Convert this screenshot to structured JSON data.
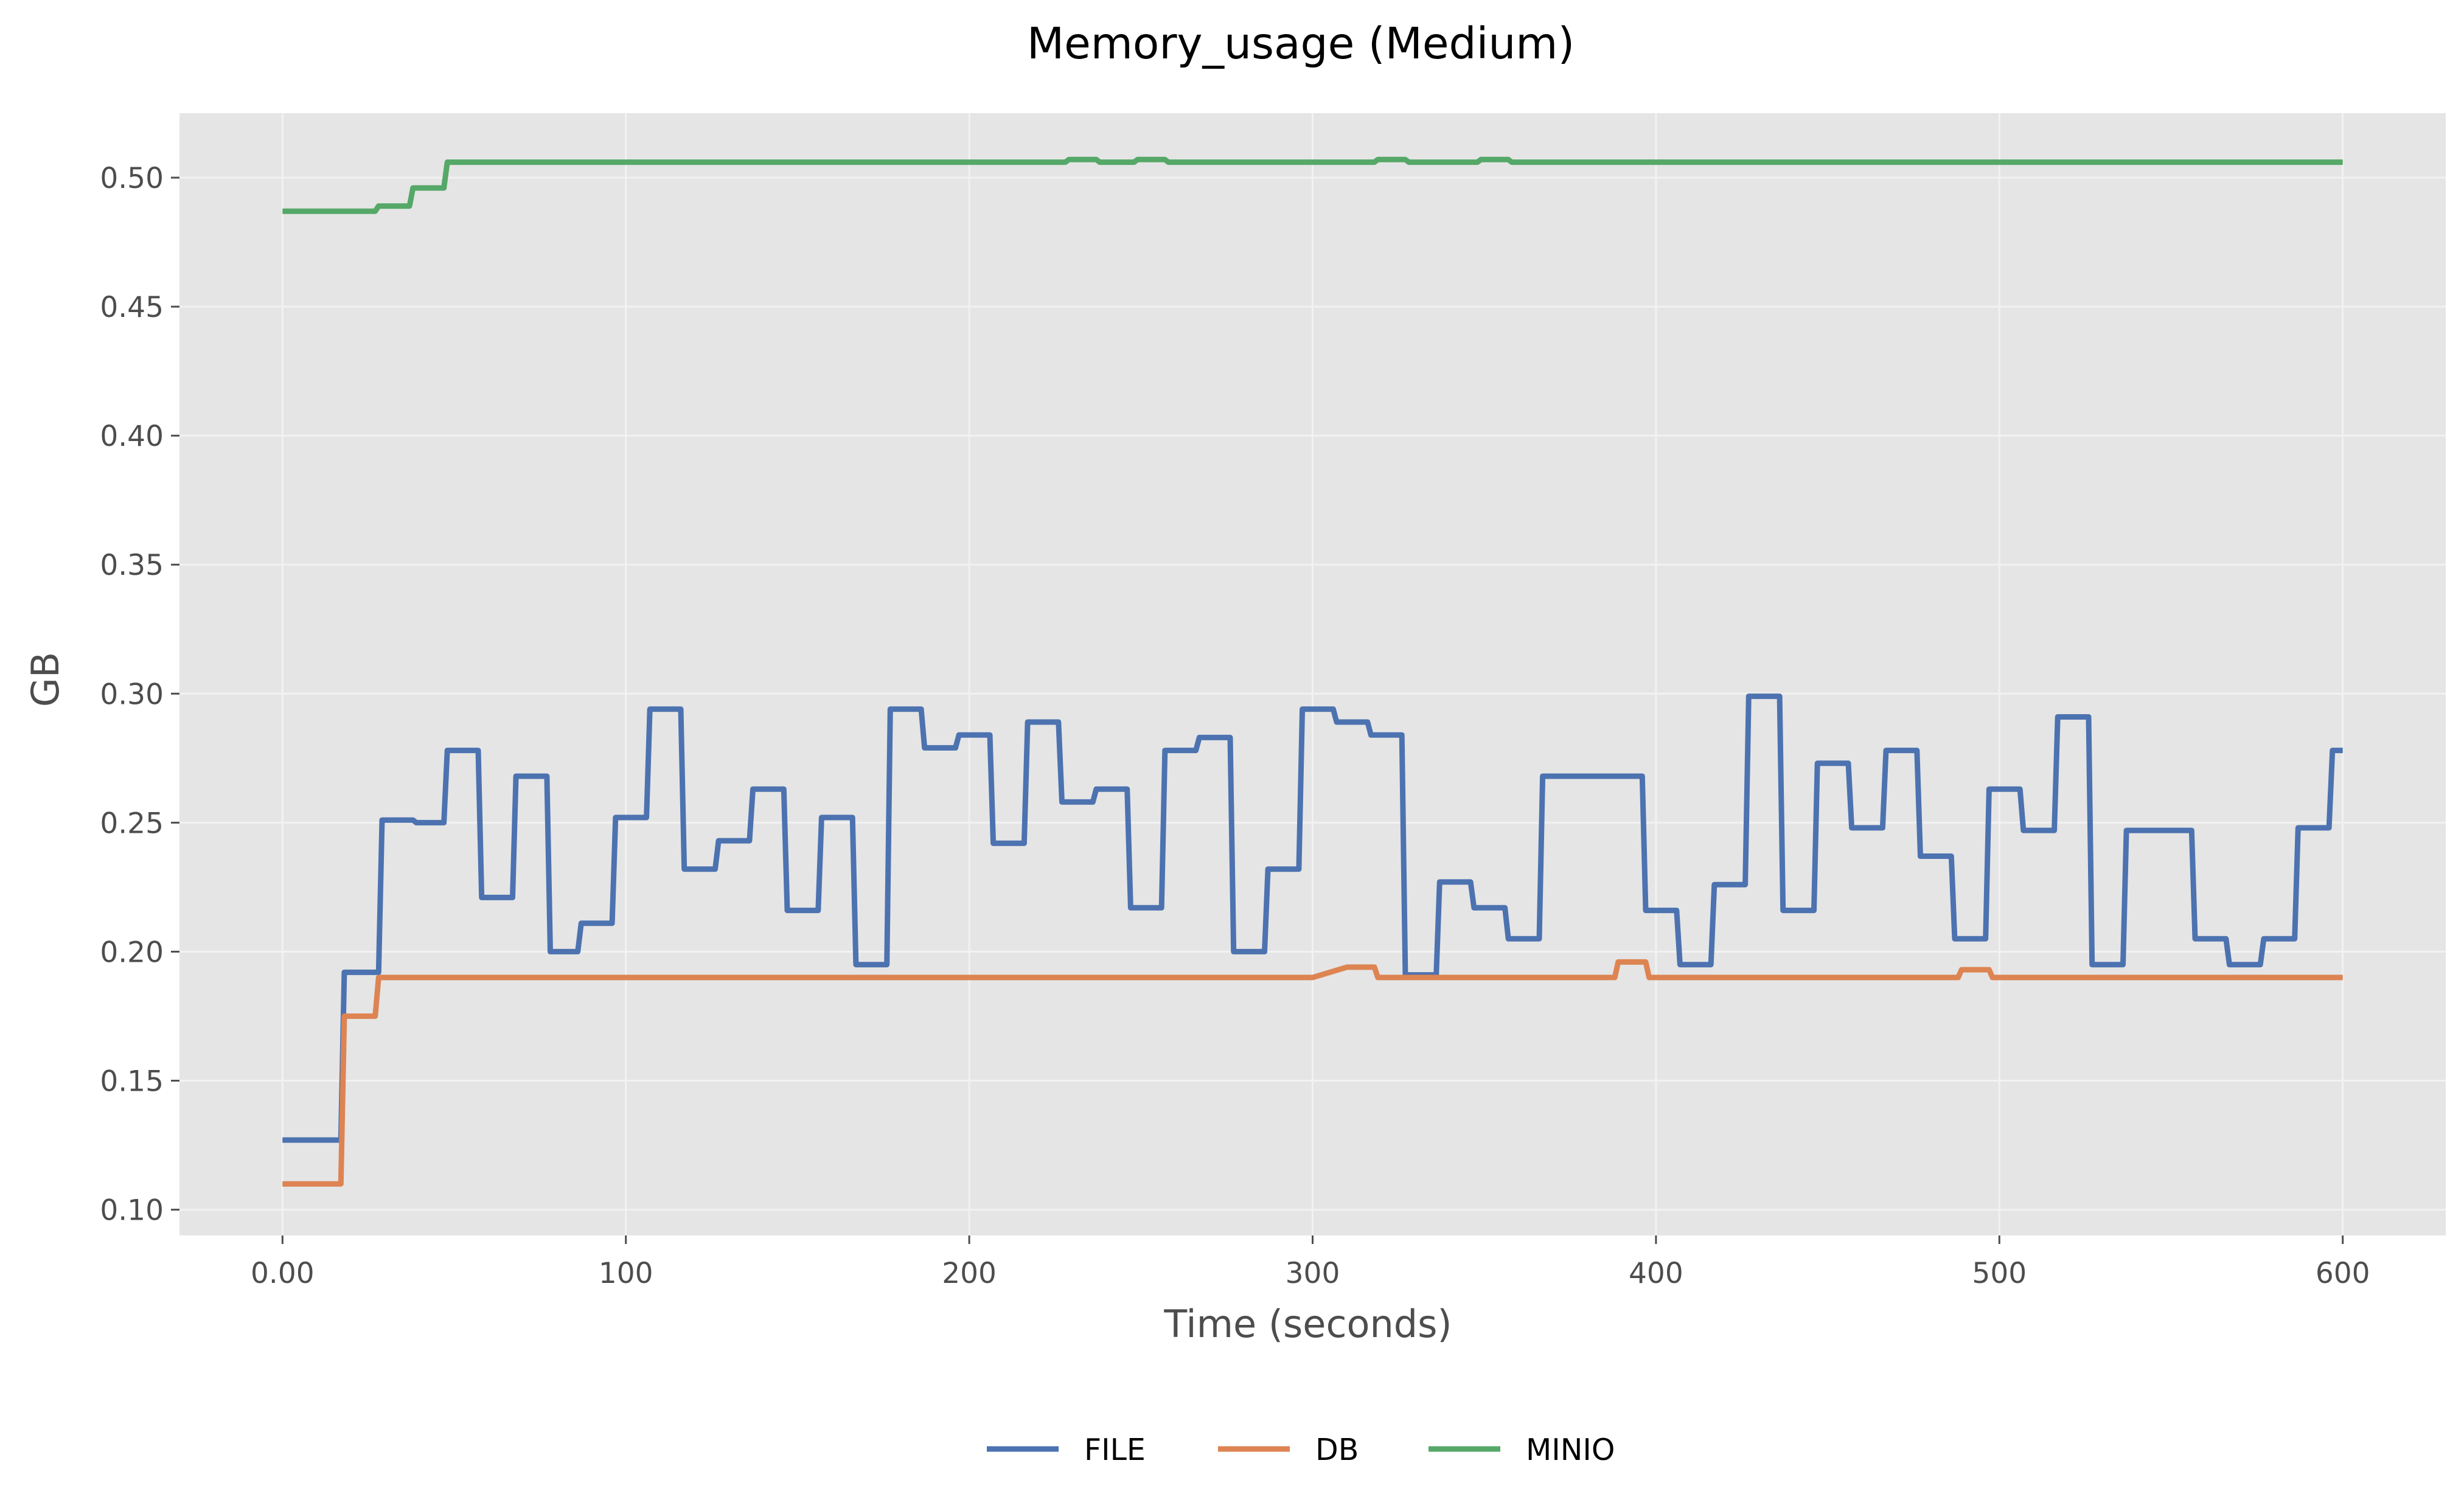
{
  "chart_data": {
    "type": "line",
    "title": "Memory_usage (Medium)",
    "xlabel": "Time (seconds)",
    "ylabel": "GB",
    "xlim": [
      -30,
      630
    ],
    "ylim": [
      0.09,
      0.525
    ],
    "x_ticks": [
      0,
      100,
      200,
      300,
      400,
      500,
      600
    ],
    "x_tick_labels": [
      "0.00",
      "100",
      "200",
      "300",
      "400",
      "500",
      "600"
    ],
    "y_ticks": [
      0.1,
      0.15,
      0.2,
      0.25,
      0.3,
      0.35,
      0.4,
      0.45,
      0.5
    ],
    "y_tick_labels": [
      "0.10",
      "0.15",
      "0.20",
      "0.25",
      "0.30",
      "0.35",
      "0.40",
      "0.45",
      "0.50"
    ],
    "grid": true,
    "legend_position": "bottom-center",
    "background": "#e5e5e5",
    "series": [
      {
        "name": "FILE",
        "color": "#4c72b0",
        "x": [
          0,
          17,
          18,
          28,
          29,
          38,
          39,
          47,
          48,
          57,
          58,
          67,
          68,
          77,
          78,
          86,
          87,
          96,
          97,
          106,
          107,
          116,
          117,
          126,
          127,
          136,
          137,
          146,
          147,
          156,
          157,
          166,
          167,
          176,
          177,
          186,
          187,
          196,
          197,
          206,
          207,
          216,
          217,
          226,
          227,
          236,
          237,
          246,
          247,
          256,
          257,
          266,
          267,
          276,
          277,
          286,
          287,
          296,
          297,
          306,
          307,
          316,
          317,
          326,
          327,
          336,
          337,
          346,
          347,
          356,
          357,
          366,
          367,
          376,
          377,
          396,
          397,
          406,
          407,
          416,
          417,
          426,
          427,
          436,
          437,
          446,
          447,
          456,
          457,
          466,
          467,
          476,
          477,
          486,
          487,
          496,
          497,
          506,
          507,
          516,
          517,
          526,
          527,
          536,
          537,
          556,
          557,
          566,
          567,
          576,
          577,
          586,
          587,
          596,
          597,
          600
        ],
        "y": [
          0.127,
          0.127,
          0.192,
          0.192,
          0.251,
          0.251,
          0.25,
          0.25,
          0.278,
          0.278,
          0.221,
          0.221,
          0.268,
          0.268,
          0.2,
          0.2,
          0.211,
          0.211,
          0.252,
          0.252,
          0.294,
          0.294,
          0.232,
          0.232,
          0.243,
          0.243,
          0.263,
          0.263,
          0.216,
          0.216,
          0.252,
          0.252,
          0.195,
          0.195,
          0.294,
          0.294,
          0.279,
          0.279,
          0.284,
          0.284,
          0.242,
          0.242,
          0.289,
          0.289,
          0.258,
          0.258,
          0.263,
          0.263,
          0.217,
          0.217,
          0.278,
          0.278,
          0.283,
          0.283,
          0.2,
          0.2,
          0.232,
          0.232,
          0.294,
          0.294,
          0.289,
          0.289,
          0.284,
          0.284,
          0.191,
          0.191,
          0.227,
          0.227,
          0.217,
          0.217,
          0.205,
          0.205,
          0.268,
          0.268,
          0.268,
          0.268,
          0.216,
          0.216,
          0.195,
          0.195,
          0.226,
          0.226,
          0.299,
          0.299,
          0.216,
          0.216,
          0.273,
          0.273,
          0.248,
          0.248,
          0.278,
          0.278,
          0.237,
          0.237,
          0.205,
          0.205,
          0.263,
          0.263,
          0.247,
          0.247,
          0.291,
          0.291,
          0.195,
          0.195,
          0.247,
          0.247,
          0.205,
          0.205,
          0.195,
          0.195,
          0.205,
          0.205,
          0.248,
          0.248,
          0.278,
          0.278
        ]
      },
      {
        "name": "DB",
        "color": "#dd8452",
        "x": [
          0,
          17,
          18,
          27,
          28,
          70,
          71,
          300,
          310,
          318,
          319,
          388,
          389,
          397,
          398,
          488,
          489,
          497,
          498,
          600
        ],
        "y": [
          0.11,
          0.11,
          0.175,
          0.175,
          0.19,
          0.19,
          0.19,
          0.19,
          0.194,
          0.194,
          0.19,
          0.19,
          0.196,
          0.196,
          0.19,
          0.19,
          0.193,
          0.193,
          0.19,
          0.19
        ],
        "y_smooth_note_unused": null
      },
      {
        "name": "MINIO",
        "color": "#55a868",
        "x": [
          0,
          27,
          28,
          37,
          38,
          47,
          48,
          57,
          58,
          228,
          229,
          237,
          238,
          248,
          249,
          257,
          258,
          318,
          319,
          327,
          328,
          348,
          349,
          357,
          358,
          600
        ],
        "y": [
          0.487,
          0.487,
          0.489,
          0.489,
          0.496,
          0.496,
          0.506,
          0.506,
          0.506,
          0.506,
          0.507,
          0.507,
          0.506,
          0.506,
          0.507,
          0.507,
          0.506,
          0.506,
          0.507,
          0.507,
          0.506,
          0.506,
          0.507,
          0.507,
          0.506,
          0.506
        ]
      }
    ]
  }
}
